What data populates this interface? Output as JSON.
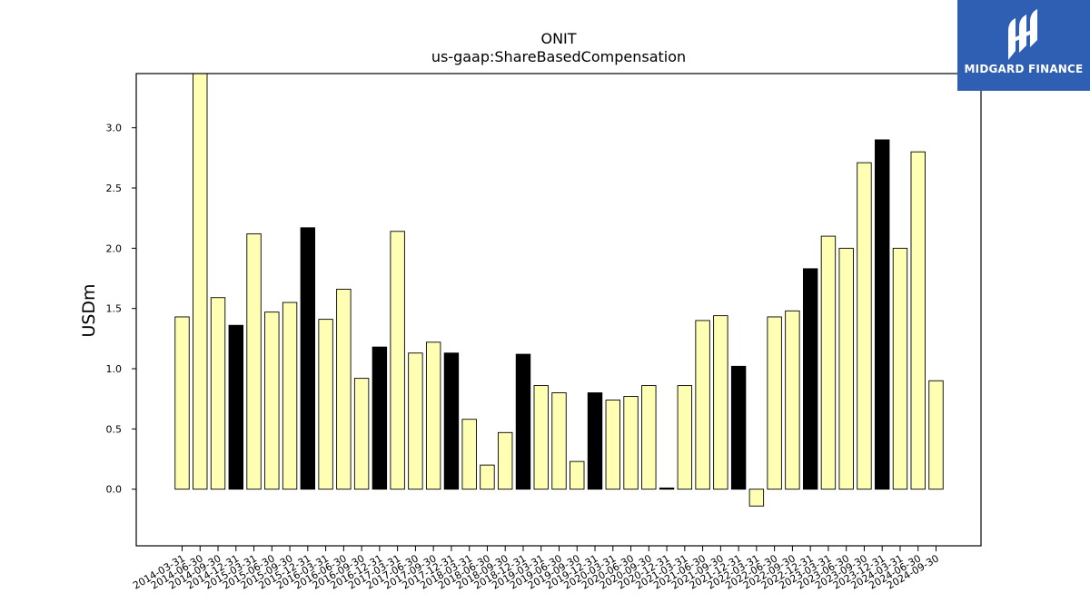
{
  "chart_data": {
    "type": "bar",
    "title": "ONIT",
    "subtitle": "us-gaap:ShareBasedCompensation",
    "ylabel": "USDm",
    "xlabel": "",
    "ylim": [
      -0.47,
      3.45
    ],
    "yticks": [
      0.0,
      0.5,
      1.0,
      1.5,
      2.0,
      2.5,
      3.0
    ],
    "ytick_labels": [
      "0.0",
      "0.5",
      "1.0",
      "1.5",
      "2.0",
      "2.5",
      "3.0"
    ],
    "grid": false,
    "colors": {
      "quarter": "#ffffb3",
      "year_end": "#000000",
      "edge": "#000000"
    },
    "categories": [
      "2014-03-31",
      "2014-06-30",
      "2014-09-30",
      "2014-12-31",
      "2015-03-31",
      "2015-06-30",
      "2015-09-30",
      "2015-12-31",
      "2016-03-31",
      "2016-06-30",
      "2016-09-30",
      "2016-12-31",
      "2017-03-31",
      "2017-06-30",
      "2017-09-30",
      "2017-12-31",
      "2018-03-31",
      "2018-06-30",
      "2018-09-30",
      "2018-12-31",
      "2019-03-31",
      "2019-06-30",
      "2019-09-30",
      "2019-12-31",
      "2020-03-31",
      "2020-06-30",
      "2020-09-30",
      "2020-12-31",
      "2021-03-31",
      "2021-06-30",
      "2021-09-30",
      "2021-12-31",
      "2022-03-31",
      "2022-06-30",
      "2022-09-30",
      "2022-12-31",
      "2023-03-31",
      "2023-06-30",
      "2023-09-30",
      "2023-12-31",
      "2024-03-31",
      "2024-06-30",
      "2024-09-30"
    ],
    "values": [
      1.43,
      3.5,
      1.59,
      1.36,
      2.12,
      1.47,
      1.55,
      2.17,
      1.41,
      1.66,
      0.92,
      1.18,
      2.14,
      1.13,
      1.22,
      1.13,
      0.58,
      0.2,
      0.47,
      1.12,
      0.86,
      0.8,
      0.23,
      0.8,
      0.74,
      0.77,
      0.86,
      0.01,
      0.86,
      1.4,
      1.44,
      1.02,
      -0.14,
      1.43,
      1.48,
      1.83,
      2.1,
      2.0,
      2.71,
      2.9,
      2.0,
      2.8,
      0.9
    ],
    "highlight": [
      false,
      false,
      false,
      true,
      false,
      false,
      false,
      true,
      false,
      false,
      false,
      true,
      false,
      false,
      false,
      true,
      false,
      false,
      false,
      true,
      false,
      false,
      false,
      true,
      false,
      false,
      false,
      true,
      false,
      false,
      false,
      true,
      false,
      false,
      false,
      true,
      false,
      false,
      false,
      true,
      false,
      false,
      false
    ]
  },
  "logo": {
    "text": "MIDGARD FINANCE"
  }
}
